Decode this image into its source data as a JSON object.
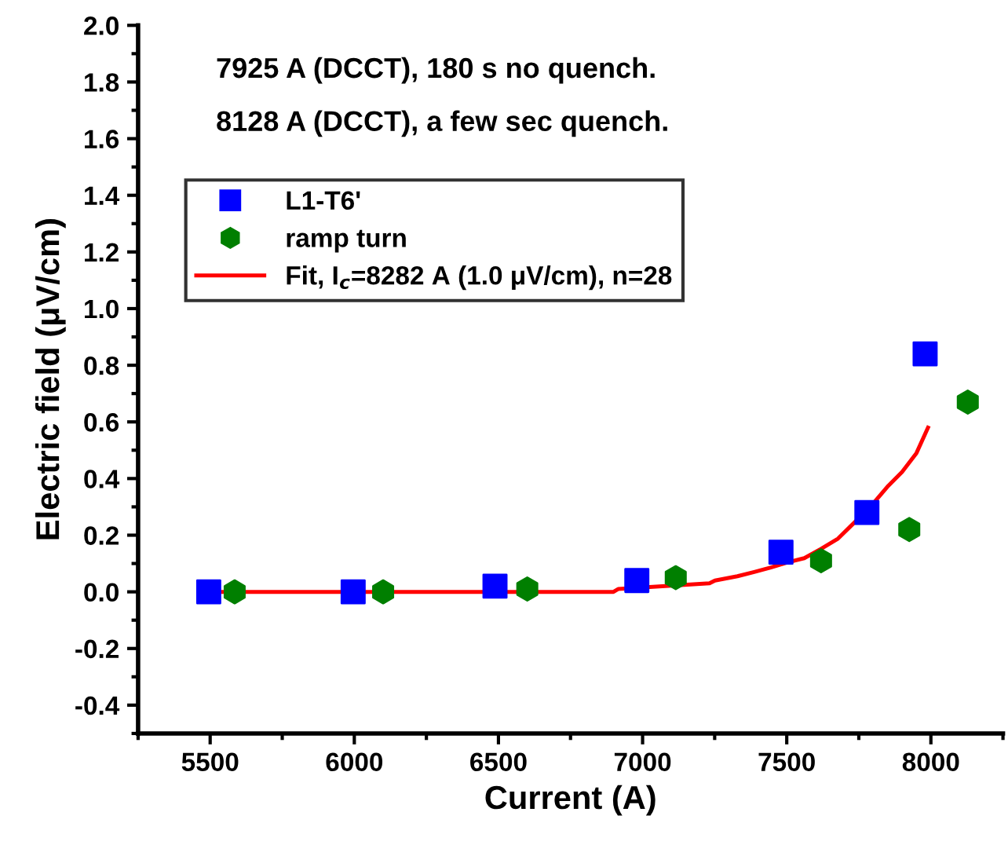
{
  "chart_data": {
    "type": "scatter",
    "xlabel": "Current (A)",
    "ylabel": "Electric field (μV/cm)",
    "annotations": [
      "7925 A (DCCT), 180 s no quench.",
      "8128 A (DCCT), a few sec quench."
    ],
    "xlim": [
      5250,
      8250
    ],
    "xticks": [
      5500,
      6000,
      6500,
      7000,
      7500,
      8000
    ],
    "ylim": [
      -0.5,
      2.0
    ],
    "yticks": [
      {
        "value": -0.4,
        "label": "-0.4"
      },
      {
        "value": -0.2,
        "label": "-0.2"
      },
      {
        "value": 0.0,
        "label": "0.0"
      },
      {
        "value": 0.2,
        "label": "0.2"
      },
      {
        "value": 0.4,
        "label": "0.4"
      },
      {
        "value": 0.6,
        "label": "0.6"
      },
      {
        "value": 0.8,
        "label": "0.8"
      },
      {
        "value": 1.0,
        "label": "1.0"
      },
      {
        "value": 1.2,
        "label": "1.2"
      },
      {
        "value": 1.4,
        "label": "1.4"
      },
      {
        "value": 1.6,
        "label": "1.6"
      },
      {
        "value": 1.8,
        "label": "1.8"
      },
      {
        "value": 2.0,
        "label": "2.0"
      }
    ],
    "grid": false,
    "legend": "top left",
    "series": [
      {
        "name": "L1-T6'",
        "marker": "square",
        "color": "#0000ff",
        "x": [
          5495,
          5996,
          6488,
          6980,
          7480,
          7778,
          7980
        ],
        "values": [
          0.0,
          0.0,
          0.02,
          0.04,
          0.14,
          0.28,
          0.84
        ]
      },
      {
        "name": "ramp turn",
        "color": "#007f00",
        "x": [
          5585,
          6100,
          6600,
          7115,
          7619,
          7925,
          8128
        ],
        "values": [
          0.0,
          0.0,
          0.01,
          0.05,
          0.11,
          0.22,
          0.67
        ]
      },
      {
        "name": "Fit, I$_{c}$=8282 A (1.0 μV/cm), n=28",
        "type": "line",
        "marker": "none",
        "color": "#ff0000",
        "x": [
          5500,
          6899,
          6915,
          7232,
          7251,
          7329,
          7387,
          7445,
          7503,
          7561,
          7619,
          7678,
          7736,
          7794,
          7852,
          7900,
          7950,
          7990
        ],
        "values": [
          0.0,
          0.0,
          0.01,
          0.03,
          0.04,
          0.055,
          0.07,
          0.086,
          0.104,
          0.119,
          0.152,
          0.188,
          0.246,
          0.305,
          0.374,
          0.423,
          0.49,
          0.58
        ]
      }
    ]
  }
}
